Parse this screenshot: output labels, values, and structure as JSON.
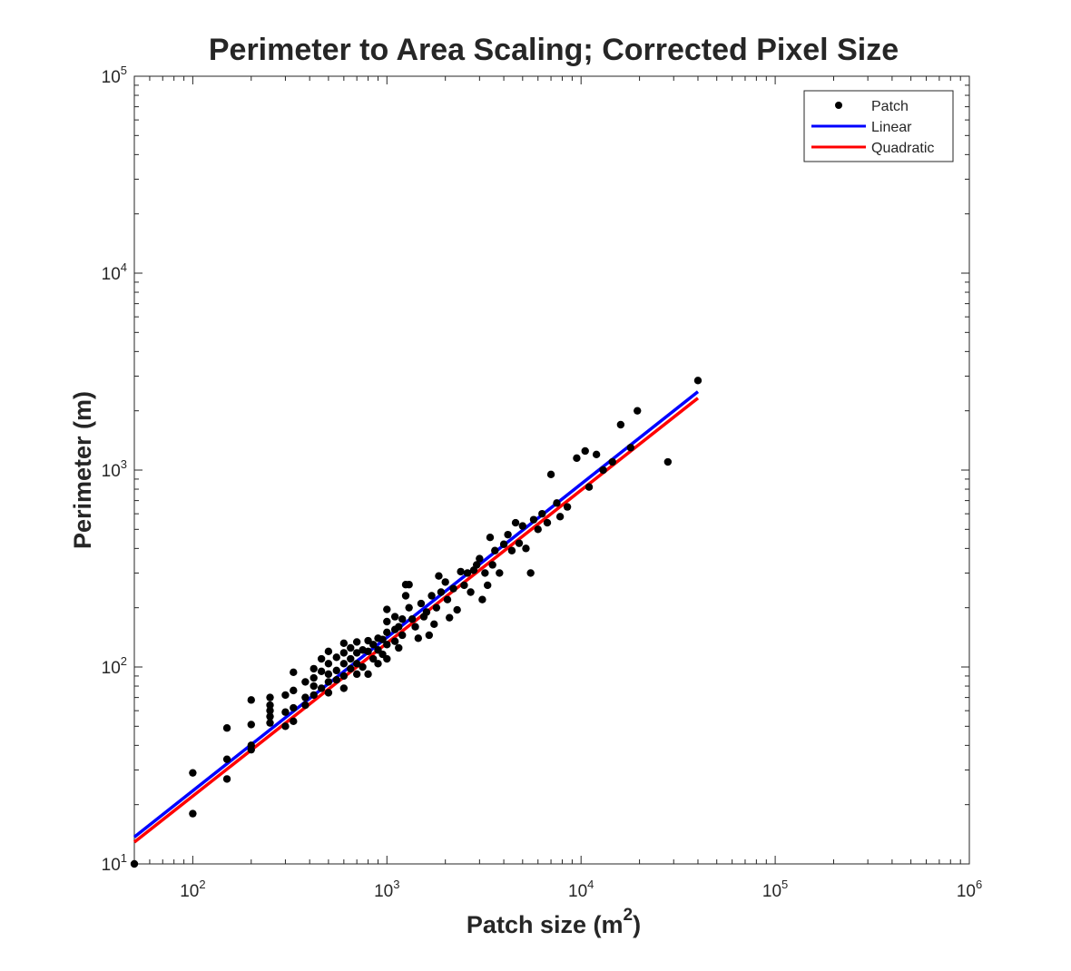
{
  "chart_data": {
    "type": "scatter",
    "title": "Perimeter to Area Scaling; Corrected Pixel Size",
    "xlabel": {
      "base": "Patch size (m",
      "sup": "2",
      "close": ")"
    },
    "ylabel": "Perimeter (m)",
    "xscale": "log",
    "yscale": "log",
    "xlim": [
      50,
      1000000
    ],
    "ylim": [
      10,
      100000
    ],
    "xticks": [
      {
        "base": "10",
        "exp": "2",
        "value": 100
      },
      {
        "base": "10",
        "exp": "3",
        "value": 1000
      },
      {
        "base": "10",
        "exp": "4",
        "value": 10000
      },
      {
        "base": "10",
        "exp": "5",
        "value": 100000
      },
      {
        "base": "10",
        "exp": "6",
        "value": 1000000
      }
    ],
    "yticks": [
      {
        "base": "10",
        "exp": "1",
        "value": 10
      },
      {
        "base": "10",
        "exp": "2",
        "value": 100
      },
      {
        "base": "10",
        "exp": "3",
        "value": 1000
      },
      {
        "base": "10",
        "exp": "4",
        "value": 10000
      },
      {
        "base": "10",
        "exp": "5",
        "value": 100000
      }
    ],
    "grid": false,
    "legend_position": "top-right",
    "series": [
      {
        "name": "Patch",
        "kind": "scatter",
        "color": "#000000",
        "points": [
          [
            50,
            10
          ],
          [
            100,
            29
          ],
          [
            100,
            18
          ],
          [
            150,
            49
          ],
          [
            150,
            34
          ],
          [
            150,
            27
          ],
          [
            200,
            68
          ],
          [
            200,
            51
          ],
          [
            200,
            40
          ],
          [
            200,
            38
          ],
          [
            250,
            70
          ],
          [
            250,
            64
          ],
          [
            250,
            60
          ],
          [
            250,
            56
          ],
          [
            250,
            52
          ],
          [
            300,
            72
          ],
          [
            300,
            59
          ],
          [
            300,
            50
          ],
          [
            330,
            94
          ],
          [
            330,
            76
          ],
          [
            330,
            62
          ],
          [
            330,
            53
          ],
          [
            380,
            84
          ],
          [
            380,
            70
          ],
          [
            380,
            64
          ],
          [
            420,
            98
          ],
          [
            420,
            88
          ],
          [
            420,
            80
          ],
          [
            420,
            72
          ],
          [
            460,
            110
          ],
          [
            460,
            95
          ],
          [
            460,
            78
          ],
          [
            500,
            120
          ],
          [
            500,
            104
          ],
          [
            500,
            92
          ],
          [
            500,
            84
          ],
          [
            500,
            74
          ],
          [
            550,
            112
          ],
          [
            550,
            96
          ],
          [
            550,
            86
          ],
          [
            600,
            132
          ],
          [
            600,
            118
          ],
          [
            600,
            104
          ],
          [
            600,
            90
          ],
          [
            600,
            78
          ],
          [
            650,
            125
          ],
          [
            650,
            110
          ],
          [
            650,
            98
          ],
          [
            700,
            134
          ],
          [
            700,
            118
          ],
          [
            700,
            104
          ],
          [
            700,
            92
          ],
          [
            750,
            122
          ],
          [
            750,
            100
          ],
          [
            800,
            136
          ],
          [
            800,
            120
          ],
          [
            800,
            92
          ],
          [
            850,
            130
          ],
          [
            850,
            110
          ],
          [
            900,
            140
          ],
          [
            900,
            122
          ],
          [
            900,
            104
          ],
          [
            950,
            138
          ],
          [
            950,
            116
          ],
          [
            1000,
            196
          ],
          [
            1000,
            170
          ],
          [
            1000,
            150
          ],
          [
            1000,
            130
          ],
          [
            1000,
            110
          ],
          [
            1100,
            180
          ],
          [
            1100,
            155
          ],
          [
            1100,
            135
          ],
          [
            1150,
            160
          ],
          [
            1150,
            125
          ],
          [
            1200,
            175
          ],
          [
            1200,
            145
          ],
          [
            1250,
            262
          ],
          [
            1250,
            230
          ],
          [
            1300,
            262
          ],
          [
            1300,
            200
          ],
          [
            1350,
            175
          ],
          [
            1400,
            160
          ],
          [
            1450,
            140
          ],
          [
            1500,
            210
          ],
          [
            1550,
            180
          ],
          [
            1600,
            190
          ],
          [
            1650,
            145
          ],
          [
            1700,
            230
          ],
          [
            1750,
            165
          ],
          [
            1800,
            200
          ],
          [
            1850,
            290
          ],
          [
            1900,
            240
          ],
          [
            2000,
            270
          ],
          [
            2050,
            220
          ],
          [
            2100,
            178
          ],
          [
            2200,
            250
          ],
          [
            2300,
            195
          ],
          [
            2400,
            305
          ],
          [
            2500,
            260
          ],
          [
            2600,
            300
          ],
          [
            2700,
            240
          ],
          [
            2800,
            310
          ],
          [
            2900,
            330
          ],
          [
            3000,
            355
          ],
          [
            3100,
            220
          ],
          [
            3200,
            300
          ],
          [
            3300,
            260
          ],
          [
            3400,
            455
          ],
          [
            3500,
            330
          ],
          [
            3600,
            390
          ],
          [
            3800,
            300
          ],
          [
            4000,
            420
          ],
          [
            4200,
            470
          ],
          [
            4400,
            390
          ],
          [
            4600,
            540
          ],
          [
            4800,
            425
          ],
          [
            5000,
            520
          ],
          [
            5200,
            400
          ],
          [
            5500,
            300
          ],
          [
            5700,
            560
          ],
          [
            6000,
            500
          ],
          [
            6300,
            600
          ],
          [
            6700,
            540
          ],
          [
            7000,
            950
          ],
          [
            7500,
            680
          ],
          [
            7800,
            580
          ],
          [
            8500,
            650
          ],
          [
            9500,
            1150
          ],
          [
            10500,
            1250
          ],
          [
            11000,
            820
          ],
          [
            12000,
            1200
          ],
          [
            13000,
            1000
          ],
          [
            14500,
            1100
          ],
          [
            16000,
            1700
          ],
          [
            18000,
            1300
          ],
          [
            19500,
            2000
          ],
          [
            28000,
            1100
          ],
          [
            40000,
            2850
          ]
        ]
      },
      {
        "name": "Linear",
        "kind": "line",
        "color": "#0000ff",
        "x": [
          50,
          40000
        ],
        "y": [
          13.7,
          2500
        ]
      },
      {
        "name": "Quadratic",
        "kind": "line",
        "color": "#ff0000",
        "x": [
          50,
          40000
        ],
        "y": [
          12.9,
          2320
        ]
      }
    ]
  }
}
